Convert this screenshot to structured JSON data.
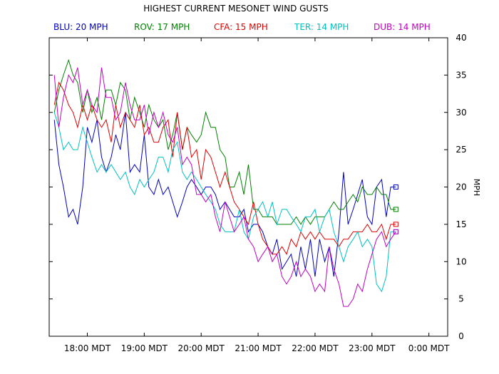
{
  "chart_data": {
    "type": "line",
    "title": "HIGHEST CURRENT MESONET WIND GUSTS",
    "xlabel": "",
    "ylabel": "MPH",
    "x_unit": "MDT (hours)",
    "xlim": [
      17.33,
      24.33
    ],
    "ylim": [
      0,
      40
    ],
    "x_ticks": [
      {
        "value": 18,
        "label": "18:00 MDT"
      },
      {
        "value": 19,
        "label": "19:00 MDT"
      },
      {
        "value": 20,
        "label": "20:00 MDT"
      },
      {
        "value": 21,
        "label": "21:00 MDT"
      },
      {
        "value": 22,
        "label": "22:00 MDT"
      },
      {
        "value": 23,
        "label": "23:00 MDT"
      },
      {
        "value": 24,
        "label": "0:00 MDT"
      }
    ],
    "y_ticks": [
      "0",
      "5",
      "10",
      "15",
      "20",
      "25",
      "30",
      "35",
      "40"
    ],
    "grid": false,
    "legend_position": "top",
    "series": [
      {
        "name": "BLU",
        "legend_label": "BLU: 20 MPH",
        "color": "#0000c0",
        "x": [
          17.42,
          17.5,
          17.58,
          17.67,
          17.75,
          17.83,
          17.92,
          18.0,
          18.08,
          18.17,
          18.25,
          18.33,
          18.42,
          18.5,
          18.58,
          18.67,
          18.75,
          18.83,
          18.92,
          19.0,
          19.08,
          19.17,
          19.25,
          19.33,
          19.42,
          19.5,
          19.58,
          19.67,
          19.75,
          19.83,
          19.92,
          20.0,
          20.08,
          20.17,
          20.25,
          20.33,
          20.42,
          20.5,
          20.58,
          20.67,
          20.75,
          20.83,
          20.92,
          21.0,
          21.08,
          21.17,
          21.25,
          21.33,
          21.42,
          21.5,
          21.58,
          21.67,
          21.75,
          21.83,
          21.92,
          22.0,
          22.08,
          22.17,
          22.25,
          22.33,
          22.42,
          22.5,
          22.58,
          22.67,
          22.75,
          22.83,
          22.92,
          23.0,
          23.08,
          23.17,
          23.25,
          23.33,
          23.42
        ],
        "y": [
          29,
          23,
          20,
          16,
          17,
          15,
          20,
          28,
          26,
          29,
          24,
          22,
          24,
          27,
          25,
          30,
          22,
          23,
          22,
          27,
          20,
          19,
          21,
          19,
          20,
          18,
          16,
          18,
          20,
          21,
          20,
          19,
          20,
          20,
          19,
          17,
          18,
          17,
          16,
          16,
          17,
          14,
          15,
          15,
          14,
          12,
          11,
          13,
          9,
          10,
          11,
          8,
          12,
          9,
          13,
          8,
          13,
          10,
          12,
          8,
          14,
          22,
          15,
          17,
          19,
          21,
          16,
          15,
          20,
          21,
          16,
          20,
          20
        ]
      },
      {
        "name": "ROV",
        "legend_label": "ROV: 17 MPH",
        "color": "#008000",
        "x": [
          17.42,
          17.5,
          17.58,
          17.67,
          17.75,
          17.83,
          17.92,
          18.0,
          18.08,
          18.17,
          18.25,
          18.33,
          18.42,
          18.5,
          18.58,
          18.67,
          18.75,
          18.83,
          18.92,
          19.0,
          19.08,
          19.17,
          19.25,
          19.33,
          19.42,
          19.5,
          19.58,
          19.67,
          19.75,
          19.83,
          19.92,
          20.0,
          20.08,
          20.17,
          20.25,
          20.33,
          20.42,
          20.5,
          20.58,
          20.67,
          20.75,
          20.83,
          20.92,
          21.0,
          21.08,
          21.17,
          21.25,
          21.33,
          21.42,
          21.5,
          21.58,
          21.67,
          21.75,
          21.83,
          21.92,
          22.0,
          22.08,
          22.17,
          22.25,
          22.33,
          22.42,
          22.5,
          22.58,
          22.67,
          22.75,
          22.83,
          22.92,
          23.0,
          23.08,
          23.17,
          23.25,
          23.33,
          23.42
        ],
        "y": [
          30,
          33,
          35,
          37,
          35,
          34,
          30,
          33,
          30,
          32,
          29,
          33,
          33,
          31,
          34,
          33,
          29,
          32,
          30,
          28,
          31,
          29,
          28,
          29,
          25,
          27,
          30,
          25,
          28,
          27,
          26,
          27,
          30,
          28,
          28,
          25,
          24,
          20,
          20,
          22,
          19,
          23,
          17,
          17,
          16,
          16,
          16,
          15,
          15,
          15,
          15,
          16,
          15,
          16,
          15,
          16,
          16,
          16,
          17,
          18,
          17,
          17,
          18,
          19,
          18,
          20,
          19,
          19,
          20,
          19,
          19,
          17,
          17
        ]
      },
      {
        "name": "CFA",
        "legend_label": "CFA: 15 MPH",
        "color": "#e00000",
        "x": [
          17.42,
          17.5,
          17.58,
          17.67,
          17.75,
          17.83,
          17.92,
          18.0,
          18.08,
          18.17,
          18.25,
          18.33,
          18.42,
          18.5,
          18.58,
          18.67,
          18.75,
          18.83,
          18.92,
          19.0,
          19.08,
          19.17,
          19.25,
          19.33,
          19.42,
          19.5,
          19.58,
          19.67,
          19.75,
          19.83,
          19.92,
          20.0,
          20.08,
          20.17,
          20.25,
          20.33,
          20.42,
          20.5,
          20.58,
          20.67,
          20.75,
          20.83,
          20.92,
          21.0,
          21.08,
          21.17,
          21.25,
          21.33,
          21.42,
          21.5,
          21.58,
          21.67,
          21.75,
          21.83,
          21.92,
          22.0,
          22.08,
          22.17,
          22.25,
          22.33,
          22.42,
          22.5,
          22.58,
          22.67,
          22.75,
          22.83,
          22.92,
          23.0,
          23.08,
          23.17,
          23.25,
          23.33,
          23.42
        ],
        "y": [
          31,
          34,
          33,
          31,
          30,
          28,
          31,
          29,
          31,
          29,
          28,
          29,
          26,
          31,
          28,
          30,
          29,
          28,
          31,
          27,
          28,
          26,
          26,
          28,
          29,
          24,
          30,
          25,
          28,
          24,
          25,
          21,
          25,
          24,
          22,
          20,
          22,
          20,
          18,
          17,
          16,
          15,
          18,
          15,
          13,
          12,
          11,
          11,
          12,
          11,
          13,
          12,
          14,
          13,
          14,
          13,
          14,
          13,
          13,
          13,
          12,
          13,
          13,
          14,
          14,
          14,
          15,
          14,
          14,
          15,
          13,
          15,
          15
        ]
      },
      {
        "name": "TER",
        "legend_label": "TER: 14 MPH",
        "color": "#00c0c0",
        "x": [
          17.42,
          17.5,
          17.58,
          17.67,
          17.75,
          17.83,
          17.92,
          18.0,
          18.08,
          18.17,
          18.25,
          18.33,
          18.42,
          18.5,
          18.58,
          18.67,
          18.75,
          18.83,
          18.92,
          19.0,
          19.08,
          19.17,
          19.25,
          19.33,
          19.42,
          19.5,
          19.58,
          19.67,
          19.75,
          19.83,
          19.92,
          20.0,
          20.08,
          20.17,
          20.25,
          20.33,
          20.42,
          20.5,
          20.58,
          20.67,
          20.75,
          20.83,
          20.92,
          21.0,
          21.08,
          21.17,
          21.25,
          21.33,
          21.42,
          21.5,
          21.58,
          21.67,
          21.75,
          21.83,
          21.92,
          22.0,
          22.08,
          22.17,
          22.25,
          22.33,
          22.42,
          22.5,
          22.58,
          22.67,
          22.75,
          22.83,
          22.92,
          23.0,
          23.08,
          23.17,
          23.25,
          23.33,
          23.42
        ],
        "y": [
          30,
          28,
          25,
          26,
          25,
          25,
          28,
          26,
          24,
          22,
          23,
          22,
          23,
          22,
          21,
          22,
          20,
          19,
          21,
          20,
          21,
          22,
          24,
          24,
          22,
          25,
          26,
          22,
          21,
          22,
          21,
          20,
          19,
          18,
          17,
          15,
          14,
          14,
          14,
          17,
          14,
          13,
          16,
          17,
          18,
          16,
          18,
          15,
          17,
          17,
          16,
          15,
          14,
          16,
          16,
          17,
          14,
          16,
          17,
          14,
          12,
          10,
          12,
          13,
          14,
          12,
          13,
          12,
          7,
          6,
          8,
          14,
          14
        ]
      },
      {
        "name": "DUB",
        "legend_label": "DUB: 14 MPH",
        "color": "#c000c0",
        "x": [
          17.42,
          17.5,
          17.58,
          17.67,
          17.75,
          17.83,
          17.92,
          18.0,
          18.08,
          18.17,
          18.25,
          18.33,
          18.42,
          18.5,
          18.58,
          18.67,
          18.75,
          18.83,
          18.92,
          19.0,
          19.08,
          19.17,
          19.25,
          19.33,
          19.42,
          19.5,
          19.58,
          19.67,
          19.75,
          19.83,
          19.92,
          20.0,
          20.08,
          20.17,
          20.25,
          20.33,
          20.42,
          20.5,
          20.58,
          20.67,
          20.75,
          20.83,
          20.92,
          21.0,
          21.08,
          21.17,
          21.25,
          21.33,
          21.42,
          21.5,
          21.58,
          21.67,
          21.75,
          21.83,
          21.92,
          22.0,
          22.08,
          22.17,
          22.25,
          22.33,
          22.42,
          22.5,
          22.58,
          22.67,
          22.75,
          22.83,
          22.92,
          23.0,
          23.08,
          23.17,
          23.25,
          23.33,
          23.42
        ],
        "y": [
          35,
          28,
          32,
          35,
          34,
          36,
          31,
          33,
          31,
          30,
          36,
          32,
          32,
          29,
          30,
          34,
          31,
          29,
          29,
          31,
          27,
          30,
          28,
          30,
          27,
          26,
          28,
          23,
          24,
          23,
          19,
          19,
          18,
          19,
          16,
          14,
          18,
          16,
          14,
          15,
          16,
          13,
          12,
          10,
          11,
          12,
          10,
          11,
          8,
          7,
          8,
          10,
          8,
          9,
          8,
          6,
          7,
          6,
          12,
          9,
          7,
          4,
          4,
          5,
          7,
          6,
          9,
          11,
          13,
          14,
          12,
          13,
          14
        ]
      }
    ]
  }
}
